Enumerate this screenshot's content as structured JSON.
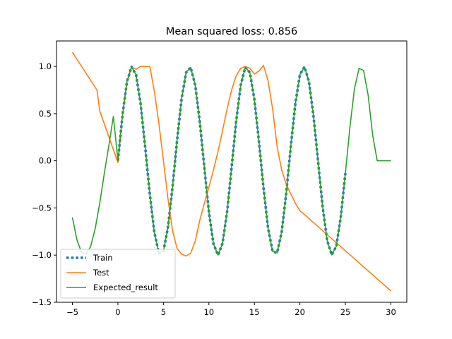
{
  "chart_data": {
    "type": "line",
    "title": "Mean squared loss: 0.856",
    "xlabel": "",
    "ylabel": "",
    "xlim": [
      -6.75,
      31.75
    ],
    "ylim": [
      -1.5,
      1.27
    ],
    "xticks": [
      -5,
      0,
      5,
      10,
      15,
      20,
      25,
      30
    ],
    "xtick_labels": [
      "−5",
      "0",
      "5",
      "10",
      "15",
      "20",
      "25",
      "30"
    ],
    "yticks": [
      -1.5,
      -1.0,
      -0.5,
      0.0,
      0.5,
      1.0
    ],
    "ytick_labels": [
      "−1.5",
      "−1.0",
      "−0.5",
      "0.0",
      "0.5",
      "1.0"
    ],
    "grid": false,
    "legend_position": "lower-left",
    "series": [
      {
        "name": "Train",
        "style": "dotted",
        "color": "#1f77b4",
        "x": [
          0,
          0.5,
          1,
          1.5,
          2,
          2.5,
          3,
          3.5,
          4,
          4.5,
          5,
          5.5,
          6,
          6.5,
          7,
          7.5,
          8,
          8.5,
          9,
          9.5,
          10,
          10.5,
          11,
          11.5,
          12,
          12.5,
          13,
          13.5,
          14,
          14.5,
          15,
          15.5,
          16,
          16.5,
          17,
          17.5,
          18,
          18.5,
          19,
          19.5,
          20,
          20.5,
          21,
          21.5,
          22,
          22.5,
          23,
          23.5,
          24,
          24.5,
          25
        ],
        "y": [
          0.0,
          0.479,
          0.841,
          0.997,
          0.909,
          0.598,
          0.141,
          -0.351,
          -0.757,
          -0.978,
          -0.959,
          -0.706,
          -0.279,
          0.215,
          0.657,
          0.938,
          0.989,
          0.798,
          0.412,
          -0.075,
          -0.544,
          -0.88,
          -1.0,
          -0.875,
          -0.537,
          -0.066,
          0.42,
          0.804,
          0.991,
          0.935,
          0.65,
          0.206,
          -0.288,
          -0.712,
          -0.961,
          -0.976,
          -0.751,
          -0.342,
          0.15,
          0.605,
          0.913,
          0.996,
          0.837,
          0.472,
          -0.009,
          -0.487,
          -0.846,
          -0.998,
          -0.906,
          -0.591,
          -0.132
        ]
      },
      {
        "name": "Test",
        "style": "solid",
        "color": "#ff7f0e",
        "x": [
          -5,
          -2.3,
          -2,
          0,
          0.5,
          1,
          1.5,
          2,
          2.5,
          3,
          3.5,
          4,
          4.5,
          5,
          5.5,
          6,
          6.5,
          7,
          7.5,
          8,
          8.5,
          9,
          9.5,
          10,
          10.5,
          11,
          11.5,
          12,
          12.5,
          13,
          13.5,
          14,
          14.5,
          15,
          15.5,
          16,
          16.5,
          17,
          17.5,
          18,
          18.5,
          19,
          19.5,
          20,
          20.5,
          30
        ],
        "y": [
          1.15,
          0.75,
          0.53,
          -0.02,
          0.48,
          0.84,
          0.99,
          0.97,
          1.0,
          1.0,
          1.0,
          0.74,
          0.4,
          0.0,
          -0.4,
          -0.74,
          -0.93,
          -0.99,
          -1.01,
          -0.98,
          -0.85,
          -0.63,
          -0.45,
          -0.28,
          -0.1,
          0.1,
          0.32,
          0.55,
          0.75,
          0.9,
          0.98,
          1.0,
          0.98,
          0.92,
          0.95,
          1.01,
          0.85,
          0.55,
          0.15,
          -0.1,
          -0.25,
          -0.35,
          -0.45,
          -0.53,
          -0.57,
          -1.38
        ]
      },
      {
        "name": "Expected_result",
        "style": "solid",
        "color": "#2ca02c",
        "x": [
          -5,
          -4.5,
          -4,
          -3.5,
          -3,
          -2.5,
          -2,
          -1.5,
          -1,
          -0.5,
          0,
          0.5,
          1,
          1.5,
          2,
          2.5,
          3,
          3.5,
          4,
          4.5,
          5,
          5.5,
          6,
          6.5,
          7,
          7.5,
          8,
          8.5,
          9,
          9.5,
          10,
          10.5,
          11,
          11.5,
          12,
          12.5,
          13,
          13.5,
          14,
          14.5,
          15,
          15.5,
          16,
          16.5,
          17,
          17.5,
          18,
          18.5,
          19,
          19.5,
          20,
          20.5,
          21,
          21.5,
          22,
          22.5,
          23,
          23.5,
          24,
          24.5,
          25,
          25.5,
          26,
          26.5,
          27,
          27.5,
          28,
          28.5,
          29,
          29.5,
          30
        ],
        "y": [
          -0.6,
          -0.84,
          -0.97,
          -0.99,
          -0.91,
          -0.72,
          -0.45,
          -0.14,
          0.16,
          0.47,
          0.0,
          0.479,
          0.841,
          0.997,
          0.909,
          0.598,
          0.141,
          -0.351,
          -0.757,
          -0.978,
          -0.959,
          -0.706,
          -0.279,
          0.215,
          0.657,
          0.938,
          0.989,
          0.798,
          0.412,
          -0.075,
          -0.544,
          -0.88,
          -1.0,
          -0.875,
          -0.537,
          -0.066,
          0.42,
          0.804,
          0.991,
          0.935,
          0.65,
          0.206,
          -0.288,
          -0.712,
          -0.961,
          -0.976,
          -0.751,
          -0.342,
          0.15,
          0.605,
          0.913,
          0.996,
          0.837,
          0.472,
          -0.009,
          -0.487,
          -0.846,
          -0.998,
          -0.906,
          -0.591,
          -0.132,
          0.361,
          0.763,
          0.98,
          0.956,
          0.699,
          0.27,
          0.0,
          0.0,
          0.0,
          0.0
        ]
      }
    ]
  }
}
